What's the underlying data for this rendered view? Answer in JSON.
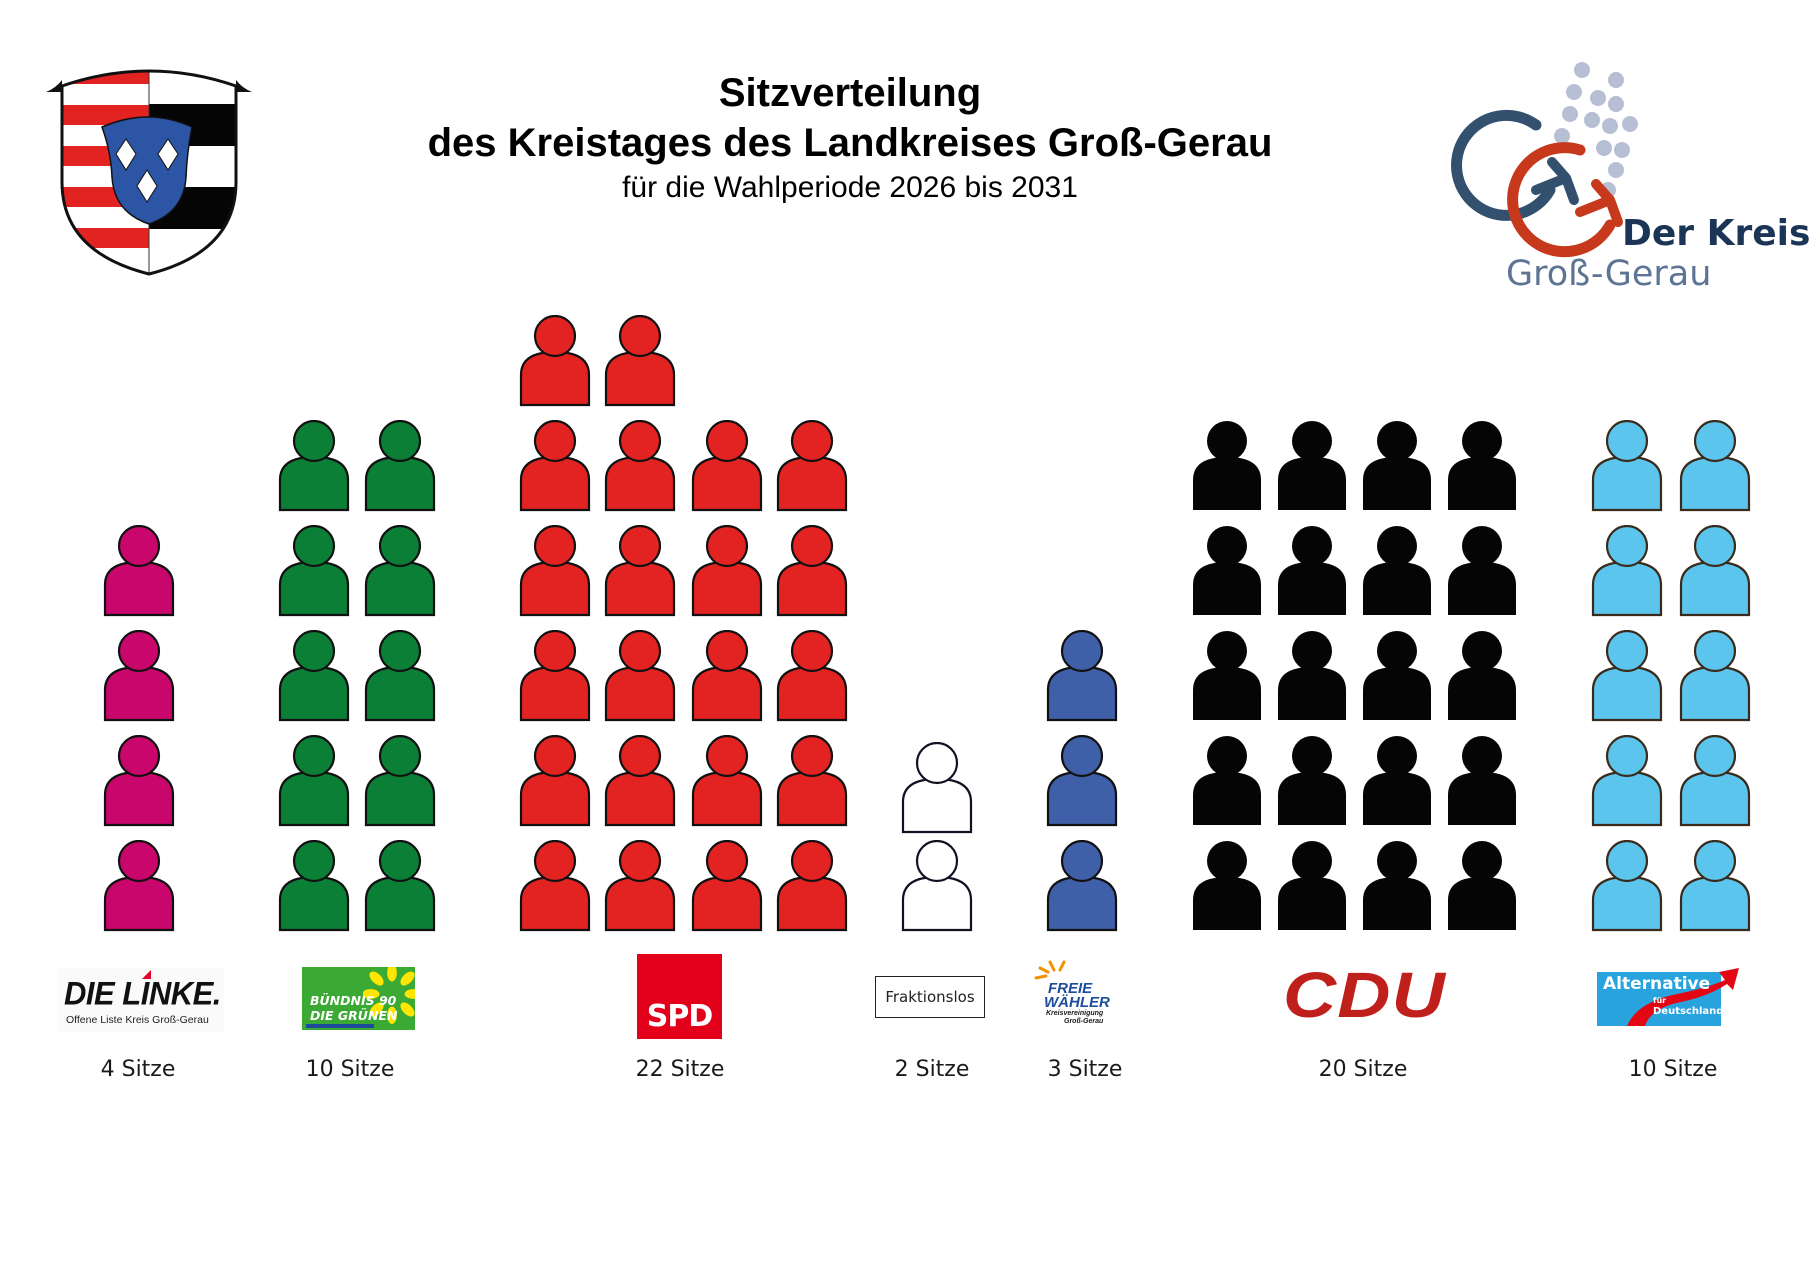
{
  "header": {
    "title_line1": "Sitzverteilung",
    "title_line2": "des Kreistages des Landkreises Groß-Gerau",
    "subtitle": "für die Wahlperiode 2026 bis 2031"
  },
  "logos": {
    "coat_of_arms": "coat-of-arms-gross-gerau",
    "kreis_line1": "Der Kreis",
    "kreis_line2": "Groß-Gerau"
  },
  "parties": [
    {
      "id": "linke",
      "name": "DIE LINKE.",
      "subtitle": "Offene Liste Kreis Groß-Gerau",
      "seats": 4,
      "seats_label": "4 Sitze",
      "color": "#c8066b",
      "outline": "#111111"
    },
    {
      "id": "gruene",
      "name_line1": "BÜNDNIS 90",
      "name_line2": "DIE GRÜNEN",
      "seats": 10,
      "seats_label": "10 Sitze",
      "color": "#0b7f36",
      "outline": "#111111"
    },
    {
      "id": "spd",
      "name": "SPD",
      "seats": 22,
      "seats_label": "22 Sitze",
      "color": "#e32322",
      "outline": "#111111"
    },
    {
      "id": "fraktionslos",
      "name": "Fraktionslos",
      "seats": 2,
      "seats_label": "2 Sitze",
      "color": "#ffffff",
      "outline": "#111122"
    },
    {
      "id": "freie-waehler",
      "name_line1": "FREIE",
      "name_line2": "WÄHLER",
      "sub_line1": "Kreisvereinigung",
      "sub_line2": "Groß-Gerau",
      "seats": 3,
      "seats_label": "3 Sitze",
      "color": "#3f60a8",
      "outline": "#111111"
    },
    {
      "id": "cdu",
      "name": "CDU",
      "seats": 20,
      "seats_label": "20 Sitze",
      "color": "#050505",
      "outline": "#050505"
    },
    {
      "id": "afd",
      "name_line1": "Alternative",
      "name_line2": "für",
      "name_line3": "Deutschland",
      "seats": 10,
      "seats_label": "10 Sitze",
      "color": "#5bc5ee",
      "outline": "#3a2a1a"
    }
  ],
  "chart_data": {
    "type": "bar",
    "title": "Sitzverteilung des Kreistages des Landkreises Groß-Gerau",
    "subtitle": "für die Wahlperiode 2026 bis 2031",
    "representation": "pictogram (one person icon per seat)",
    "categories": [
      "DIE LINKE. (Offene Liste Kreis Groß-Gerau)",
      "BÜNDNIS 90 / DIE GRÜNEN",
      "SPD",
      "Fraktionslos",
      "FREIE WÄHLER Kreisvereinigung Groß-Gerau",
      "CDU",
      "Alternative für Deutschland"
    ],
    "values": [
      4,
      10,
      22,
      2,
      3,
      20,
      10
    ],
    "unit": "Sitze",
    "total": 71,
    "colors": [
      "#c8066b",
      "#0b7f36",
      "#e32322",
      "#ffffff",
      "#3f60a8",
      "#050505",
      "#5bc5ee"
    ],
    "xlabel": "",
    "ylabel": "",
    "grid": false,
    "legend": "party logos below each column"
  }
}
